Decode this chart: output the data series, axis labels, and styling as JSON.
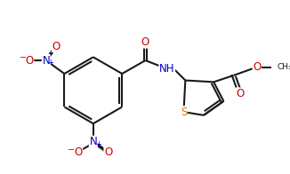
{
  "bg_color": "#ffffff",
  "line_color": "#1a1a1a",
  "atom_colors": {
    "O": "#cc0000",
    "N": "#0000cc",
    "S": "#cc7700",
    "C": "#1a1a1a"
  },
  "lw": 1.5,
  "fs": 8.5
}
